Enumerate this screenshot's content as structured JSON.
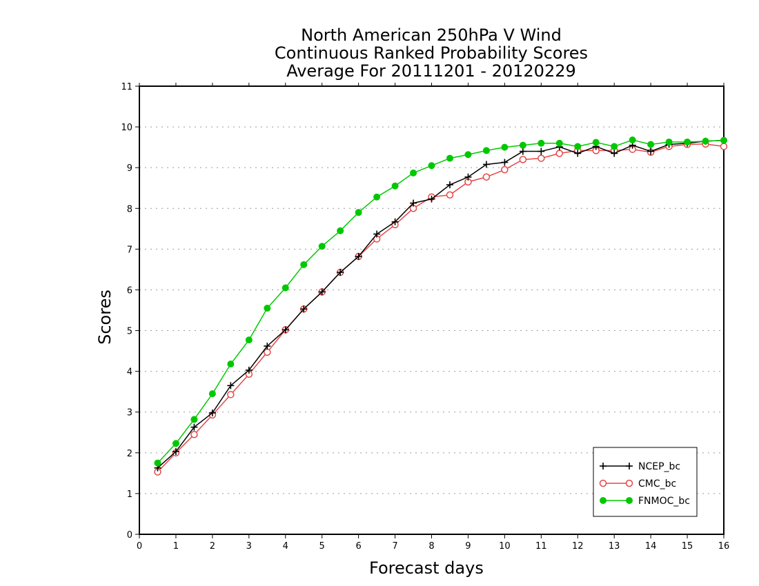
{
  "chart_data": {
    "type": "line",
    "title": [
      "North American 250hPa V Wind",
      "Continuous Ranked Probability Scores",
      "Average For 20111201 - 20120229"
    ],
    "xlabel": "Forecast days",
    "ylabel": "Scores",
    "xlim": [
      0,
      16
    ],
    "ylim": [
      0,
      11
    ],
    "xticks": [
      "0",
      "1",
      "2",
      "3",
      "4",
      "5",
      "6",
      "7",
      "8",
      "9",
      "10",
      "11",
      "12",
      "13",
      "14",
      "15",
      "16"
    ],
    "yticks": [
      "0",
      "1",
      "2",
      "3",
      "4",
      "5",
      "6",
      "7",
      "8",
      "9",
      "10",
      "11"
    ],
    "grid": "horizontal-dotted",
    "legend_position": "bottom-right",
    "x": [
      0.5,
      1,
      1.5,
      2,
      2.5,
      3,
      3.5,
      4,
      4.5,
      5,
      5.5,
      6,
      6.5,
      7,
      7.5,
      8,
      8.5,
      9,
      9.5,
      10,
      10.5,
      11,
      11.5,
      12,
      12.5,
      13,
      13.5,
      14,
      14.5,
      15,
      15.5,
      16
    ],
    "series": [
      {
        "name": "NCEP_bc",
        "color": "#000000",
        "marker": "plus",
        "values": [
          1.63,
          2.03,
          2.63,
          2.98,
          3.65,
          4.03,
          4.62,
          5.02,
          5.53,
          5.95,
          6.43,
          6.82,
          7.37,
          7.67,
          8.13,
          8.23,
          8.58,
          8.77,
          9.08,
          9.13,
          9.4,
          9.4,
          9.51,
          9.35,
          9.52,
          9.35,
          9.55,
          9.4,
          9.57,
          9.6,
          9.65,
          9.67
        ]
      },
      {
        "name": "CMC_bc",
        "color": "#e64646",
        "marker": "open-circle",
        "values": [
          1.53,
          2.0,
          2.45,
          2.93,
          3.43,
          3.93,
          4.47,
          5.02,
          5.53,
          5.95,
          6.43,
          6.82,
          7.25,
          7.6,
          8.0,
          8.28,
          8.33,
          8.65,
          8.77,
          8.95,
          9.2,
          9.23,
          9.35,
          9.42,
          9.42,
          9.42,
          9.45,
          9.38,
          9.52,
          9.57,
          9.58,
          9.52
        ]
      },
      {
        "name": "FNMOC_bc",
        "color": "#00c800",
        "marker": "filled-circle",
        "values": [
          1.75,
          2.23,
          2.82,
          3.45,
          4.18,
          4.77,
          5.55,
          6.05,
          6.62,
          7.07,
          7.45,
          7.9,
          8.28,
          8.55,
          8.87,
          9.05,
          9.23,
          9.32,
          9.42,
          9.5,
          9.55,
          9.6,
          9.6,
          9.52,
          9.62,
          9.52,
          9.68,
          9.57,
          9.63,
          9.63,
          9.65,
          9.67
        ]
      }
    ]
  }
}
